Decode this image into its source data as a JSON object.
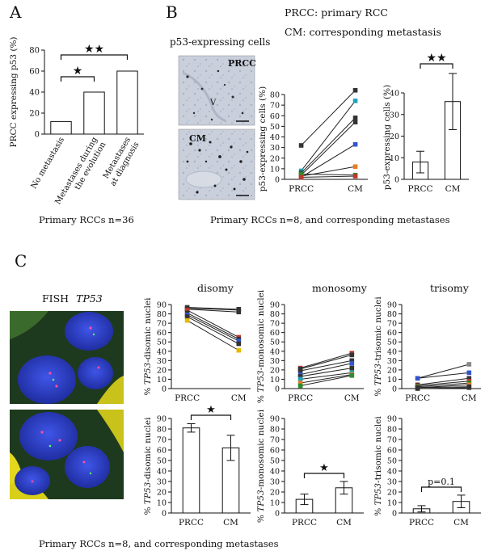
{
  "panels": {
    "A": {
      "letter": "A",
      "caption": "Primary RCCs n=36",
      "chart": {
        "type": "bar",
        "categories": [
          "No metastasis",
          "Metastases during the evolution",
          "Metastases at diagnosis"
        ],
        "category_lines": [
          [
            "No metastasis"
          ],
          [
            "Metastases during",
            "the evolution"
          ],
          [
            "Metastases",
            "at diagnosis"
          ]
        ],
        "values": [
          12,
          40,
          60
        ],
        "ylabel": "PRCC expressing p53 (%)",
        "ylim": [
          0,
          80
        ],
        "yticks": [
          0,
          20,
          40,
          60,
          80
        ],
        "significance": [
          {
            "from": 0,
            "to": 1,
            "mark": "★"
          },
          {
            "from": 0,
            "to": 2,
            "mark": "★★"
          }
        ]
      }
    },
    "B": {
      "letter": "B",
      "legend_line1": "PRCC: primary RCC",
      "legend_line2": "CM: corresponding metastasis",
      "image_title": "p53-expressing cells",
      "image_label_top": "PRCC",
      "image_label_bottom": "CM",
      "image_marker": "V",
      "caption": "Primary RCCs n=8, and corresponding metastases",
      "paired": {
        "type": "line",
        "categories": [
          "PRCC",
          "CM"
        ],
        "ylabel": "p53-expressing cells (%)",
        "ylim": [
          0,
          80
        ],
        "yticks": [
          0,
          10,
          20,
          30,
          40,
          50,
          60,
          70,
          80
        ],
        "series": [
          {
            "values": [
              32,
              84
            ],
            "color": "#333333"
          },
          {
            "values": [
              8,
              74
            ],
            "color": "#1fa3b8"
          },
          {
            "values": [
              6,
              58
            ],
            "color": "#333333"
          },
          {
            "values": [
              4,
              54
            ],
            "color": "#333333"
          },
          {
            "values": [
              2,
              33
            ],
            "color": "#3355cc"
          },
          {
            "values": [
              3,
              12
            ],
            "color": "#e67e22"
          },
          {
            "values": [
              5,
              4
            ],
            "color": "#2e8b2e"
          },
          {
            "values": [
              2,
              3
            ],
            "color": "#c0392b"
          }
        ]
      },
      "bars": {
        "type": "bar",
        "categories": [
          "PRCC",
          "CM"
        ],
        "values": [
          8,
          36
        ],
        "errors": [
          5,
          13
        ],
        "ylabel": "p53-expressing cells (%)",
        "ylim": [
          0,
          40
        ],
        "yticks": [
          0,
          10,
          20,
          30,
          40
        ],
        "significance": {
          "mark": "★★"
        }
      }
    },
    "C": {
      "letter": "C",
      "fish_title": "FISH",
      "fish_gene": "TP53",
      "caption": "Primary RCCs n=8, and corresponding metastases",
      "columns": [
        {
          "title": "disomy",
          "ylabel_gene": "TP53",
          "ylabel_rest": "-disomic nuclei",
          "line": {
            "type": "line",
            "categories": [
              "PRCC",
              "CM"
            ],
            "ylim": [
              0,
              90
            ],
            "yticks": [
              0,
              10,
              20,
              30,
              40,
              50,
              60,
              70,
              80,
              90
            ],
            "series": [
              {
                "values": [
                  87,
                  85
                ],
                "color": "#333333"
              },
              {
                "values": [
                  86,
                  84
                ],
                "color": "#333333"
              },
              {
                "values": [
                  85,
                  82
                ],
                "color": "#333333"
              },
              {
                "values": [
                  84,
                  55
                ],
                "color": "#c0392b"
              },
              {
                "values": [
                  81,
                  53
                ],
                "color": "#333333"
              },
              {
                "values": [
                  79,
                  51
                ],
                "color": "#3355cc"
              },
              {
                "values": [
                  77,
                  48
                ],
                "color": "#333333"
              },
              {
                "values": [
                  73,
                  41
                ],
                "color": "#e6b800"
              }
            ]
          },
          "bar": {
            "type": "bar",
            "categories": [
              "PRCC",
              "CM"
            ],
            "values": [
              81,
              62
            ],
            "errors": [
              4,
              12
            ],
            "ylim": [
              0,
              90
            ],
            "yticks": [
              0,
              10,
              20,
              30,
              40,
              50,
              60,
              70,
              80,
              90
            ],
            "significance": {
              "mark": "★"
            }
          }
        },
        {
          "title": "monosomy",
          "ylabel_gene": "TP53",
          "ylabel_rest": "-monosomic nuclei",
          "line": {
            "type": "line",
            "categories": [
              "PRCC",
              "CM"
            ],
            "ylim": [
              0,
              90
            ],
            "yticks": [
              0,
              10,
              20,
              30,
              40,
              50,
              60,
              70,
              80,
              90
            ],
            "series": [
              {
                "values": [
                  22,
                  38
                ],
                "color": "#c0392b"
              },
              {
                "values": [
                  21,
                  36
                ],
                "color": "#333333"
              },
              {
                "values": [
                  19,
                  30
                ],
                "color": "#333333"
              },
              {
                "values": [
                  15,
                  27
                ],
                "color": "#3355cc"
              },
              {
                "values": [
                  13,
                  22
                ],
                "color": "#333333"
              },
              {
                "values": [
                  10,
                  17
                ],
                "color": "#1fa3b8"
              },
              {
                "values": [
                  6,
                  15
                ],
                "color": "#e67e22"
              },
              {
                "values": [
                  3,
                  14
                ],
                "color": "#2e8b2e"
              }
            ]
          },
          "bar": {
            "type": "bar",
            "categories": [
              "PRCC",
              "CM"
            ],
            "values": [
              13,
              24
            ],
            "errors": [
              5,
              6
            ],
            "ylim": [
              0,
              90
            ],
            "yticks": [
              0,
              10,
              20,
              30,
              40,
              50,
              60,
              70,
              80,
              90
            ],
            "significance": {
              "mark": "★"
            }
          }
        },
        {
          "title": "trisomy",
          "ylabel_gene": "TP53",
          "ylabel_rest": "-trisomic nuclei",
          "line": {
            "type": "line",
            "categories": [
              "PRCC",
              "CM"
            ],
            "ylim": [
              0,
              90
            ],
            "yticks": [
              0,
              10,
              20,
              30,
              40,
              50,
              60,
              70,
              80,
              90
            ],
            "series": [
              {
                "values": [
                  11,
                  26
                ],
                "color": "#888888"
              },
              {
                "values": [
                  11,
                  17
                ],
                "color": "#3355cc"
              },
              {
                "values": [
                  4,
                  11
                ],
                "color": "#333333"
              },
              {
                "values": [
                  3,
                  8
                ],
                "color": "#c0392b"
              },
              {
                "values": [
                  2,
                  6
                ],
                "color": "#2e8b2e"
              },
              {
                "values": [
                  1,
                  4
                ],
                "color": "#e67e22"
              },
              {
                "values": [
                  1,
                  2
                ],
                "color": "#333333"
              },
              {
                "values": [
                  0,
                  1
                ],
                "color": "#333333"
              }
            ]
          },
          "bar": {
            "type": "bar",
            "categories": [
              "PRCC",
              "CM"
            ],
            "values": [
              4,
              11
            ],
            "errors": [
              3,
              6
            ],
            "ylim": [
              0,
              90
            ],
            "yticks": [
              0,
              10,
              20,
              30,
              40,
              50,
              60,
              70,
              80,
              90
            ],
            "significance": {
              "text": "p=0.1"
            }
          }
        }
      ]
    }
  },
  "chart_data": [
    {
      "type": "bar",
      "categories": [
        "No metastasis",
        "Metastases during the evolution",
        "Metastases at diagnosis"
      ],
      "values": [
        12,
        40,
        60
      ],
      "ylabel": "PRCC expressing p53 (%)",
      "ylim": [
        0,
        80
      ]
    },
    {
      "type": "line",
      "categories": [
        "PRCC",
        "CM"
      ],
      "ylabel": "p53-expressing cells (%)",
      "ylim": [
        0,
        80
      ],
      "series": [
        {
          "values": [
            32,
            84
          ]
        },
        {
          "values": [
            8,
            74
          ]
        },
        {
          "values": [
            6,
            58
          ]
        },
        {
          "values": [
            4,
            54
          ]
        },
        {
          "values": [
            2,
            33
          ]
        },
        {
          "values": [
            3,
            12
          ]
        },
        {
          "values": [
            5,
            4
          ]
        },
        {
          "values": [
            2,
            3
          ]
        }
      ]
    },
    {
      "type": "bar",
      "categories": [
        "PRCC",
        "CM"
      ],
      "values": [
        8,
        36
      ],
      "errors": [
        5,
        13
      ],
      "ylabel": "p53-expressing cells (%)",
      "ylim": [
        0,
        40
      ]
    },
    {
      "type": "line",
      "title": "disomy",
      "categories": [
        "PRCC",
        "CM"
      ],
      "ylabel": "% TP53-disomic nuclei",
      "ylim": [
        0,
        90
      ],
      "series": [
        {
          "values": [
            87,
            85
          ]
        },
        {
          "values": [
            86,
            84
          ]
        },
        {
          "values": [
            85,
            82
          ]
        },
        {
          "values": [
            84,
            55
          ]
        },
        {
          "values": [
            81,
            53
          ]
        },
        {
          "values": [
            79,
            51
          ]
        },
        {
          "values": [
            77,
            48
          ]
        },
        {
          "values": [
            73,
            41
          ]
        }
      ]
    },
    {
      "type": "line",
      "title": "monosomy",
      "categories": [
        "PRCC",
        "CM"
      ],
      "ylabel": "% TP53-monosomic nuclei",
      "ylim": [
        0,
        90
      ],
      "series": [
        {
          "values": [
            22,
            38
          ]
        },
        {
          "values": [
            21,
            36
          ]
        },
        {
          "values": [
            19,
            30
          ]
        },
        {
          "values": [
            15,
            27
          ]
        },
        {
          "values": [
            13,
            22
          ]
        },
        {
          "values": [
            10,
            17
          ]
        },
        {
          "values": [
            6,
            15
          ]
        },
        {
          "values": [
            3,
            14
          ]
        }
      ]
    },
    {
      "type": "line",
      "title": "trisomy",
      "categories": [
        "PRCC",
        "CM"
      ],
      "ylabel": "% TP53-trisomic nuclei",
      "ylim": [
        0,
        90
      ],
      "series": [
        {
          "values": [
            11,
            26
          ]
        },
        {
          "values": [
            11,
            17
          ]
        },
        {
          "values": [
            4,
            11
          ]
        },
        {
          "values": [
            3,
            8
          ]
        },
        {
          "values": [
            2,
            6
          ]
        },
        {
          "values": [
            1,
            4
          ]
        },
        {
          "values": [
            1,
            2
          ]
        },
        {
          "values": [
            0,
            1
          ]
        }
      ]
    },
    {
      "type": "bar",
      "categories": [
        "PRCC",
        "CM"
      ],
      "values": [
        81,
        62
      ],
      "errors": [
        4,
        12
      ],
      "ylabel": "% TP53-disomic nuclei",
      "ylim": [
        0,
        90
      ]
    },
    {
      "type": "bar",
      "categories": [
        "PRCC",
        "CM"
      ],
      "values": [
        13,
        24
      ],
      "errors": [
        5,
        6
      ],
      "ylabel": "% TP53-monosomic nuclei",
      "ylim": [
        0,
        90
      ]
    },
    {
      "type": "bar",
      "categories": [
        "PRCC",
        "CM"
      ],
      "values": [
        4,
        11
      ],
      "errors": [
        3,
        6
      ],
      "ylabel": "% TP53-trisomic nuclei",
      "ylim": [
        0,
        90
      ]
    }
  ]
}
